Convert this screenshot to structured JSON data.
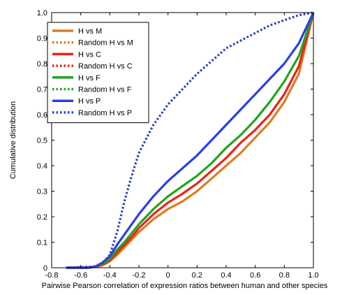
{
  "chart_data": {
    "type": "line",
    "title": "",
    "xlabel": "Pairwise Pearson correlation of expression ratios between human and other species",
    "ylabel": "Cumulative distribution",
    "xlim": [
      -0.8,
      1.0
    ],
    "ylim": [
      0,
      1.0
    ],
    "xticks": [
      "-0.8",
      "-0.6",
      "-0.4",
      "-0.2",
      "0",
      "0.2",
      "0.4",
      "0.6",
      "0.8",
      "1.0"
    ],
    "yticks": [
      "0",
      "0.1",
      "0.2",
      "0.3",
      "0.4",
      "0.5",
      "0.6",
      "0.7",
      "0.8",
      "0.9",
      "1.0"
    ],
    "grid": false,
    "legend_position": "top-left",
    "series": [
      {
        "name": "H vs M",
        "color": "#e07b20",
        "style": "solid",
        "x": [
          -0.7,
          -0.55,
          -0.5,
          -0.45,
          -0.4,
          -0.35,
          -0.3,
          -0.25,
          -0.2,
          -0.1,
          0.0,
          0.1,
          0.2,
          0.3,
          0.4,
          0.5,
          0.6,
          0.7,
          0.8,
          0.9,
          1.0
        ],
        "y": [
          0.0,
          0.0,
          0.003,
          0.01,
          0.025,
          0.05,
          0.08,
          0.11,
          0.14,
          0.19,
          0.23,
          0.26,
          0.3,
          0.35,
          0.4,
          0.45,
          0.51,
          0.57,
          0.65,
          0.76,
          1.0
        ]
      },
      {
        "name": "Random H vs M",
        "color": "#e07b20",
        "style": "dotted",
        "x": [
          -0.7,
          -0.5,
          -0.45,
          -0.4,
          -0.35,
          -0.3,
          -0.25,
          -0.2,
          -0.1,
          0.0,
          0.1,
          0.2,
          0.3,
          0.4,
          0.5,
          0.6,
          0.7,
          0.8,
          0.9,
          0.95,
          1.0
        ],
        "y": [
          0.0,
          0.005,
          0.02,
          0.05,
          0.14,
          0.26,
          0.36,
          0.45,
          0.56,
          0.64,
          0.7,
          0.76,
          0.81,
          0.86,
          0.89,
          0.92,
          0.95,
          0.97,
          0.99,
          0.995,
          1.0
        ]
      },
      {
        "name": "H vs C",
        "color": "#e8231b",
        "style": "solid",
        "x": [
          -0.7,
          -0.55,
          -0.5,
          -0.45,
          -0.4,
          -0.35,
          -0.3,
          -0.25,
          -0.2,
          -0.1,
          0.0,
          0.1,
          0.2,
          0.3,
          0.4,
          0.5,
          0.6,
          0.7,
          0.8,
          0.9,
          1.0
        ],
        "y": [
          0.0,
          0.0,
          0.004,
          0.012,
          0.03,
          0.06,
          0.09,
          0.12,
          0.155,
          0.21,
          0.255,
          0.29,
          0.33,
          0.38,
          0.43,
          0.49,
          0.54,
          0.6,
          0.68,
          0.79,
          1.0
        ]
      },
      {
        "name": "Random H vs C",
        "color": "#e8231b",
        "style": "dotted",
        "x": [
          -0.7,
          -0.5,
          -0.45,
          -0.4,
          -0.35,
          -0.3,
          -0.25,
          -0.2,
          -0.1,
          0.0,
          0.1,
          0.2,
          0.3,
          0.4,
          0.5,
          0.6,
          0.7,
          0.8,
          0.9,
          0.95,
          1.0
        ],
        "y": [
          0.0,
          0.005,
          0.02,
          0.05,
          0.14,
          0.26,
          0.36,
          0.45,
          0.56,
          0.64,
          0.7,
          0.76,
          0.81,
          0.86,
          0.89,
          0.92,
          0.95,
          0.97,
          0.99,
          0.995,
          1.0
        ]
      },
      {
        "name": "H vs F",
        "color": "#1fa51f",
        "style": "solid",
        "x": [
          -0.7,
          -0.55,
          -0.5,
          -0.45,
          -0.4,
          -0.35,
          -0.3,
          -0.25,
          -0.2,
          -0.1,
          0.0,
          0.1,
          0.2,
          0.3,
          0.4,
          0.5,
          0.6,
          0.7,
          0.8,
          0.9,
          1.0
        ],
        "y": [
          0.0,
          0.0,
          0.005,
          0.015,
          0.035,
          0.07,
          0.1,
          0.135,
          0.17,
          0.23,
          0.28,
          0.32,
          0.36,
          0.41,
          0.47,
          0.52,
          0.58,
          0.65,
          0.73,
          0.83,
          1.0
        ]
      },
      {
        "name": "Random H vs F",
        "color": "#1fa51f",
        "style": "dotted",
        "x": [
          -0.7,
          -0.5,
          -0.45,
          -0.4,
          -0.35,
          -0.3,
          -0.25,
          -0.2,
          -0.1,
          0.0,
          0.1,
          0.2,
          0.3,
          0.4,
          0.5,
          0.6,
          0.7,
          0.8,
          0.9,
          0.95,
          1.0
        ],
        "y": [
          0.0,
          0.005,
          0.02,
          0.05,
          0.14,
          0.26,
          0.36,
          0.45,
          0.56,
          0.64,
          0.7,
          0.76,
          0.81,
          0.86,
          0.89,
          0.92,
          0.95,
          0.97,
          0.99,
          0.995,
          1.0
        ]
      },
      {
        "name": "H vs P",
        "color": "#2a3fe0",
        "style": "solid",
        "x": [
          -0.7,
          -0.55,
          -0.5,
          -0.45,
          -0.4,
          -0.35,
          -0.3,
          -0.25,
          -0.2,
          -0.1,
          0.0,
          0.1,
          0.2,
          0.3,
          0.4,
          0.5,
          0.6,
          0.7,
          0.8,
          0.9,
          1.0
        ],
        "y": [
          0.0,
          0.0,
          0.005,
          0.02,
          0.045,
          0.09,
          0.13,
          0.17,
          0.21,
          0.28,
          0.34,
          0.39,
          0.44,
          0.5,
          0.56,
          0.62,
          0.68,
          0.74,
          0.8,
          0.88,
          1.0
        ]
      },
      {
        "name": "Random H vs P",
        "color": "#2a3fe0",
        "style": "dotted",
        "x": [
          -0.7,
          -0.5,
          -0.45,
          -0.4,
          -0.35,
          -0.3,
          -0.25,
          -0.2,
          -0.1,
          0.0,
          0.1,
          0.2,
          0.3,
          0.4,
          0.5,
          0.6,
          0.7,
          0.8,
          0.9,
          0.95,
          1.0
        ],
        "y": [
          0.0,
          0.005,
          0.02,
          0.05,
          0.14,
          0.26,
          0.36,
          0.45,
          0.56,
          0.64,
          0.7,
          0.76,
          0.81,
          0.86,
          0.89,
          0.92,
          0.95,
          0.97,
          0.99,
          0.995,
          1.0
        ]
      }
    ]
  }
}
